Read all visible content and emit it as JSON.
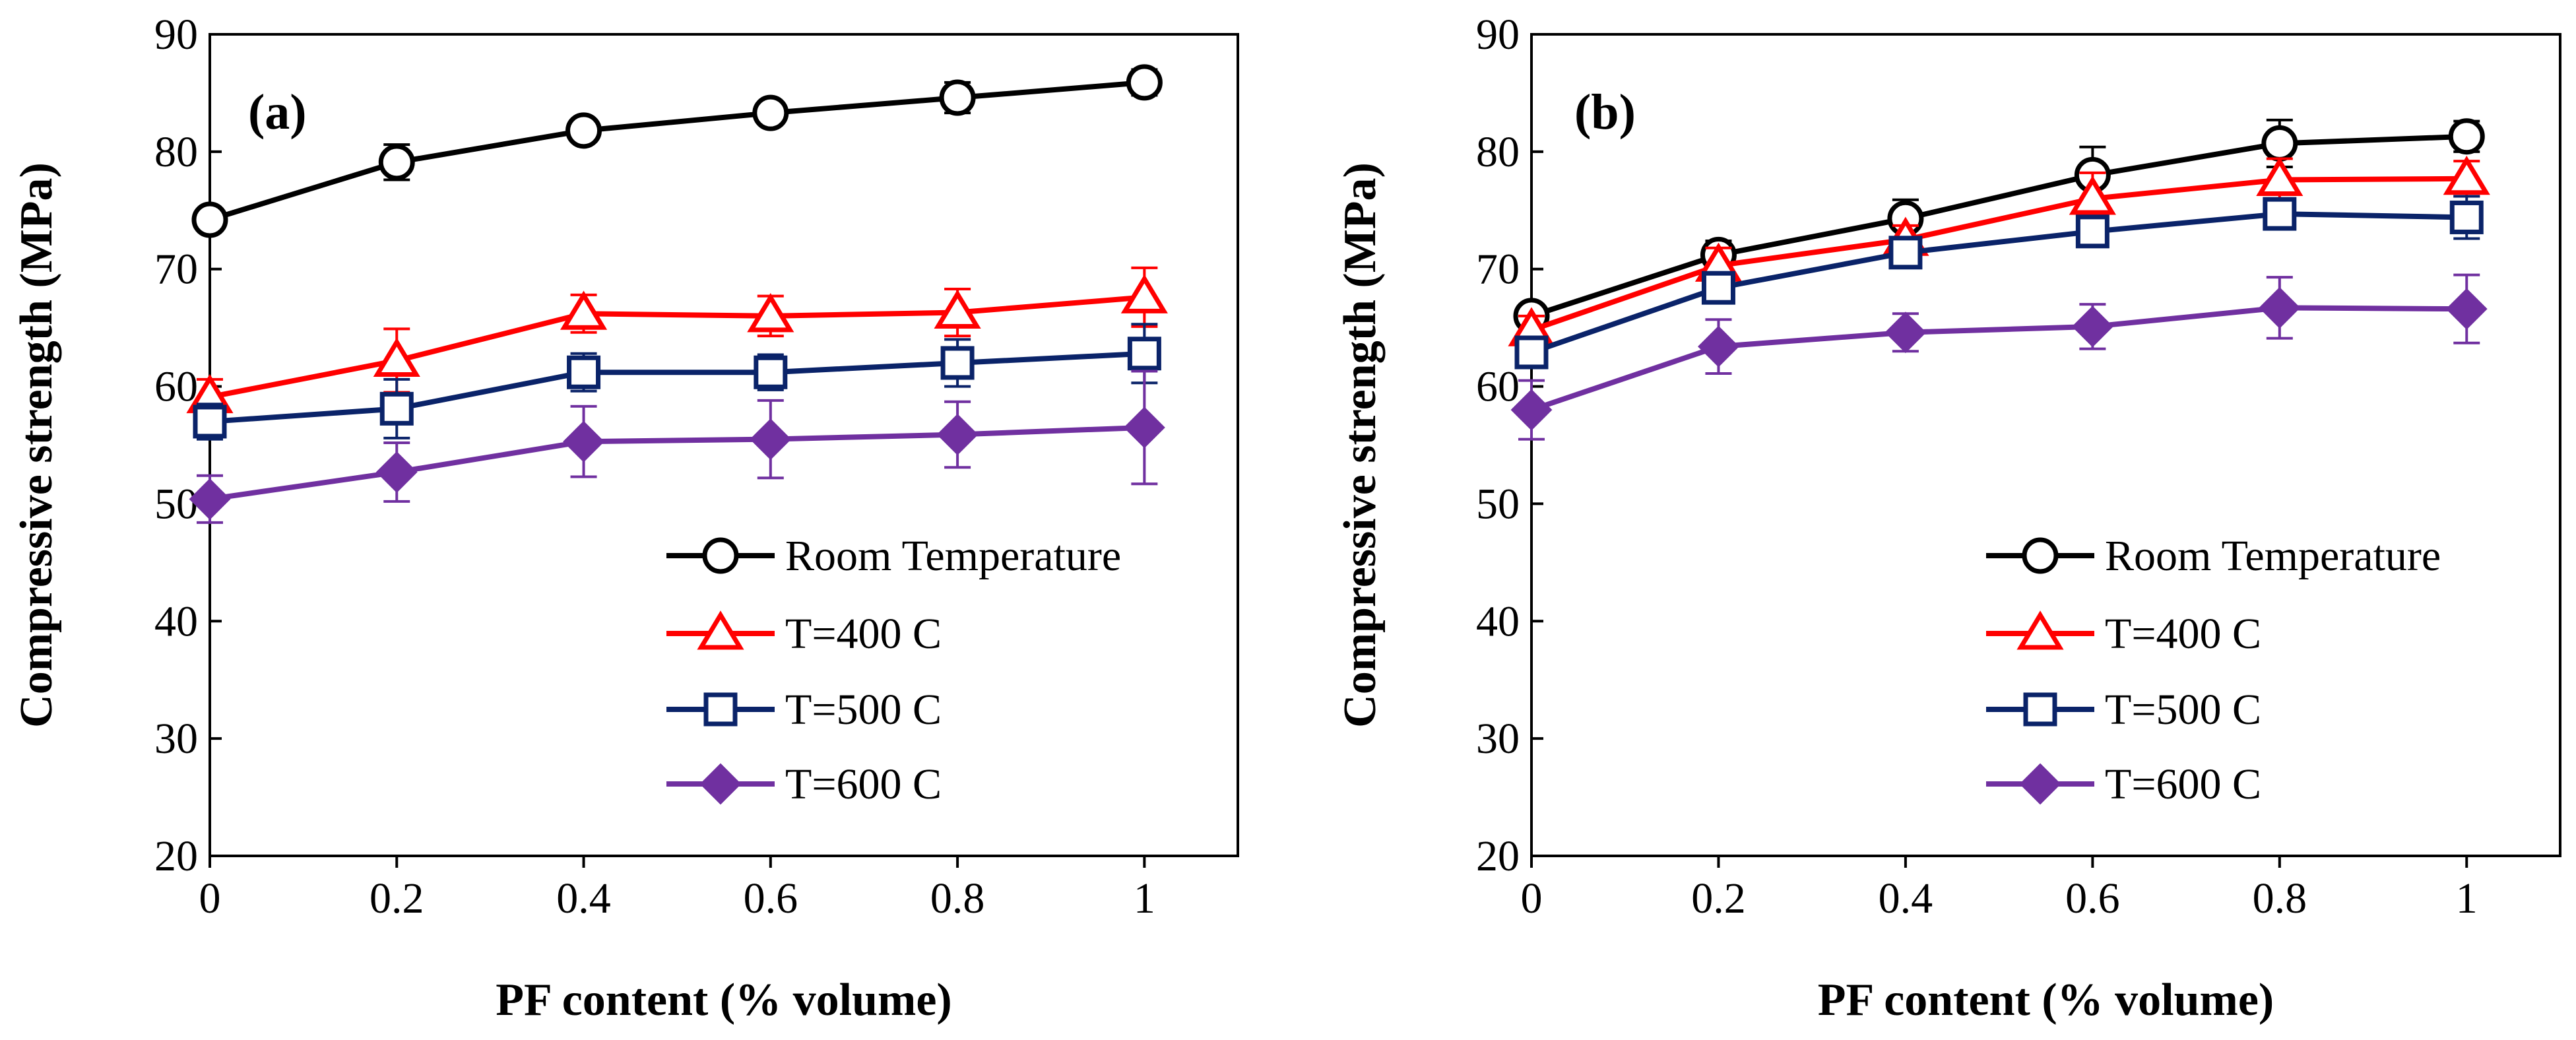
{
  "chart_data": [
    {
      "type": "line",
      "panel_label": "(a)",
      "xlabel": "PF content (% volume)",
      "ylabel": "Compressive strength (MPa)",
      "x": [
        0,
        0.2,
        0.4,
        0.6,
        0.8,
        1
      ],
      "x_tick_labels": [
        "0",
        "0.2",
        "0.4",
        "0.6",
        "0.8",
        "1"
      ],
      "xlim": [
        0,
        1.1
      ],
      "ylim": [
        20,
        90
      ],
      "y_ticks": [
        20,
        30,
        40,
        50,
        60,
        70,
        80,
        90
      ],
      "grid": false,
      "legend_position": "bottom-right",
      "series": [
        {
          "name": "Room Temperature",
          "color": "#000000",
          "marker": "circle-open",
          "values": [
            74.2,
            79.1,
            81.8,
            83.3,
            84.6,
            85.9
          ],
          "errors": [
            0.8,
            1.5,
            0.9,
            0.9,
            1.3,
            1.1
          ]
        },
        {
          "name": "T=400 C",
          "color": "#ff0000",
          "marker": "triangle-open",
          "values": [
            59.1,
            62.2,
            66.2,
            66.0,
            66.3,
            67.6
          ],
          "errors": [
            1.5,
            2.7,
            1.6,
            1.7,
            2.0,
            2.5
          ]
        },
        {
          "name": "T=500 C",
          "color": "#0a2369",
          "marker": "square-open",
          "values": [
            57.0,
            58.1,
            61.2,
            61.2,
            62.0,
            62.8
          ],
          "errors": [
            1.5,
            2.5,
            1.6,
            1.5,
            2.0,
            2.5
          ]
        },
        {
          "name": "T=600 C",
          "color": "#7030a0",
          "marker": "diamond-filled",
          "values": [
            50.4,
            52.7,
            55.3,
            55.5,
            55.9,
            56.5
          ],
          "errors": [
            2.0,
            2.5,
            3.0,
            3.3,
            2.8,
            4.8
          ]
        }
      ]
    },
    {
      "type": "line",
      "panel_label": "(b)",
      "xlabel": "PF content (% volume)",
      "ylabel": "Compressive strength (MPa)",
      "x": [
        0,
        0.2,
        0.4,
        0.6,
        0.8,
        1
      ],
      "x_tick_labels": [
        "0",
        "0.2",
        "0.4",
        "0.6",
        "0.8",
        "1"
      ],
      "xlim": [
        0,
        1.1
      ],
      "ylim": [
        20,
        90
      ],
      "y_ticks": [
        20,
        30,
        40,
        50,
        60,
        70,
        80,
        90
      ],
      "grid": false,
      "legend_position": "bottom-right",
      "series": [
        {
          "name": "Room Temperature",
          "color": "#000000",
          "marker": "circle-open",
          "values": [
            66.0,
            71.2,
            74.3,
            78.0,
            80.7,
            81.3
          ],
          "errors": [
            0.8,
            1.2,
            1.6,
            2.4,
            2.0,
            1.3
          ]
        },
        {
          "name": "T=400 C",
          "color": "#ff0000",
          "marker": "triangle-open",
          "values": [
            64.8,
            70.3,
            72.5,
            76.0,
            77.6,
            77.7
          ],
          "errors": [
            1.2,
            1.5,
            1.2,
            2.2,
            1.8,
            1.5
          ]
        },
        {
          "name": "T=500 C",
          "color": "#0a2369",
          "marker": "square-open",
          "values": [
            62.9,
            68.4,
            71.4,
            73.2,
            74.7,
            74.4
          ],
          "errors": [
            1.3,
            1.2,
            1.2,
            1.2,
            1.3,
            1.8
          ]
        },
        {
          "name": "T=600 C",
          "color": "#7030a0",
          "marker": "diamond-filled",
          "values": [
            58.0,
            63.4,
            64.6,
            65.1,
            66.7,
            66.6
          ],
          "errors": [
            2.5,
            2.3,
            1.6,
            1.9,
            2.6,
            2.9
          ]
        }
      ]
    }
  ]
}
